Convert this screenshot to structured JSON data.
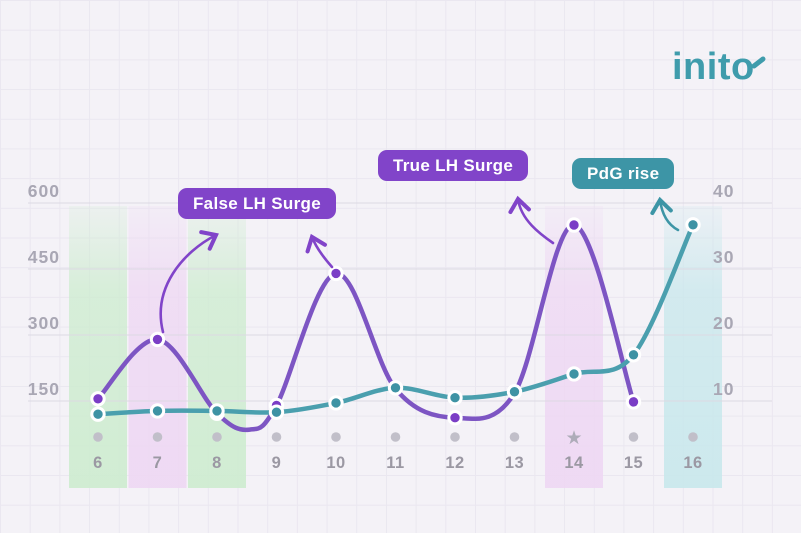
{
  "logo": {
    "text": "inito",
    "color": "#3f9cac"
  },
  "badges": [
    {
      "id": "false-lh-surge",
      "label": "False LH Surge",
      "color": "#8144c9",
      "text_color": "#ffffff"
    },
    {
      "id": "true-lh-surge",
      "label": "True LH Surge",
      "color": "#8144c9",
      "text_color": "#ffffff"
    },
    {
      "id": "pdg-rise",
      "label": "PdG rise",
      "color": "#3d95a6",
      "text_color": "#ffffff"
    }
  ],
  "chart_data": {
    "type": "line",
    "title": "",
    "x_days": [
      6,
      7,
      8,
      9,
      10,
      11,
      12,
      13,
      14,
      15,
      16
    ],
    "left_axis": {
      "ticks": [
        600,
        450,
        300,
        150
      ],
      "range": [
        0,
        640
      ],
      "side": "left"
    },
    "right_axis": {
      "ticks": [
        40,
        30,
        20,
        10
      ],
      "range": [
        0,
        42.6
      ],
      "side": "right"
    },
    "grid": true,
    "series": [
      {
        "name": "LH",
        "axis": "left",
        "color": "#7d55c3",
        "dot_color": "#7b3ec6",
        "points": [
          {
            "day": 6,
            "value": 155
          },
          {
            "day": 7,
            "value": 290
          },
          {
            "day": 8,
            "value": 122
          },
          {
            "day": 8.55,
            "value": 85,
            "shape_only": true
          },
          {
            "day": 9,
            "value": 140
          },
          {
            "day": 10,
            "value": 440
          },
          {
            "day": 11,
            "value": 178,
            "shape_only": true
          },
          {
            "day": 12,
            "value": 112
          },
          {
            "day": 13,
            "value": 168,
            "shape_only": true
          },
          {
            "day": 14,
            "value": 550
          },
          {
            "day": 15,
            "value": 148
          }
        ]
      },
      {
        "name": "PdG",
        "axis": "right",
        "color": "#4a9fae",
        "dot_color": "#3e93a4",
        "points": [
          {
            "day": 6,
            "value": 8
          },
          {
            "day": 7,
            "value": 8.5
          },
          {
            "day": 8,
            "value": 8.5
          },
          {
            "day": 9,
            "value": 8.3
          },
          {
            "day": 10,
            "value": 9.7
          },
          {
            "day": 11,
            "value": 12
          },
          {
            "day": 12,
            "value": 10.5
          },
          {
            "day": 13,
            "value": 11.4
          },
          {
            "day": 14,
            "value": 14.1
          },
          {
            "day": 15,
            "value": 17
          },
          {
            "day": 16,
            "value": 36.7
          }
        ]
      }
    ],
    "bands": [
      {
        "day": 6,
        "color": "green"
      },
      {
        "day": 7,
        "color": "pink"
      },
      {
        "day": 8,
        "color": "green"
      },
      {
        "day": 14,
        "color": "pink"
      },
      {
        "day": 16,
        "color": "teal"
      }
    ],
    "band_colors": {
      "green": "#cdeccf",
      "pink": "#eed7f3",
      "teal": "#c8e8ec"
    },
    "x_markers": {
      "dot_days": [
        6,
        7,
        8,
        9,
        10,
        11,
        12,
        13,
        15,
        16
      ],
      "star_days": [
        14
      ]
    },
    "annotations": [
      {
        "label": "False LH Surge",
        "points_to_days": [
          7,
          10
        ]
      },
      {
        "label": "True LH Surge",
        "points_to_days": [
          14
        ]
      },
      {
        "label": "PdG rise",
        "points_to_days": [
          16
        ]
      }
    ],
    "legend": "none"
  },
  "colors": {
    "background": "#f4f2f7",
    "gridline": "#dcd9e3",
    "tick_label": "#a9a7b4",
    "day_label": "#9b98a3",
    "dot_row": "#c1bfc9",
    "star": "#aeacb9"
  }
}
